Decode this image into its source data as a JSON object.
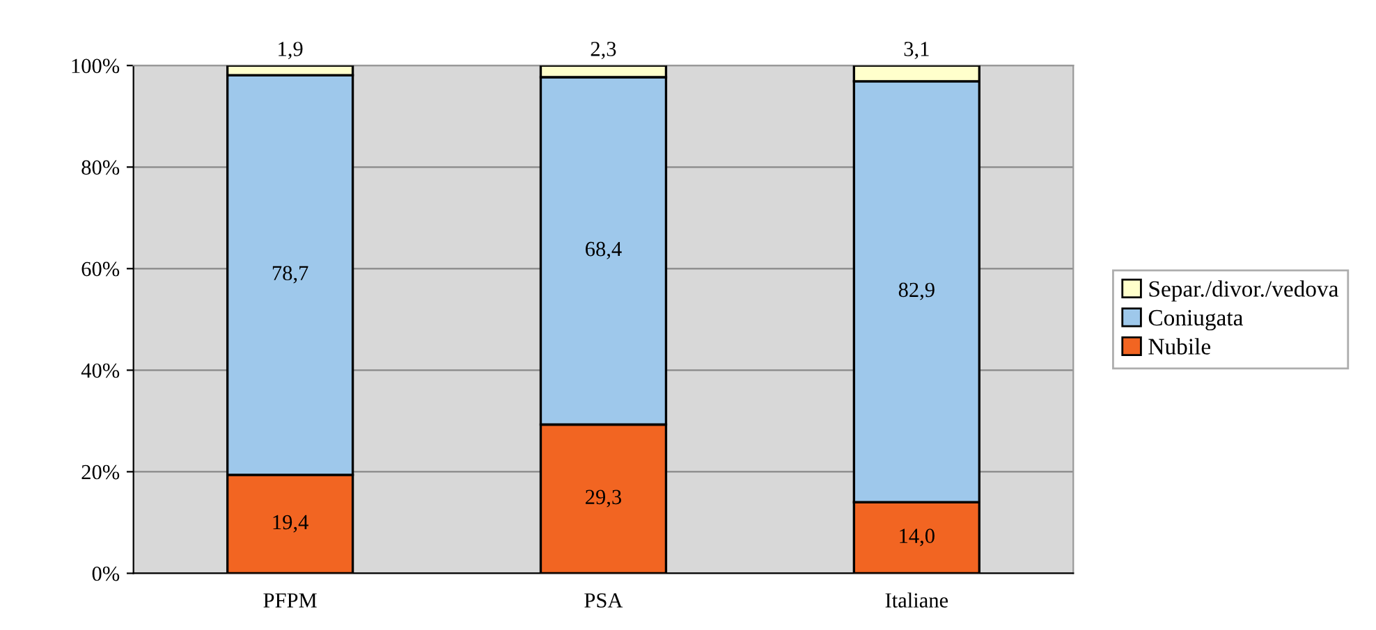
{
  "chart_data": {
    "type": "bar",
    "stacked": true,
    "categories": [
      "PFPM",
      "PSA",
      "Italiane"
    ],
    "series": [
      {
        "name": "Nubile",
        "color": "#f26522",
        "values": [
          19.4,
          29.3,
          14.0
        ],
        "value_labels": [
          "19,4",
          "29,3",
          "14,0"
        ]
      },
      {
        "name": "Coniugata",
        "color": "#9ec8eb",
        "values": [
          78.7,
          68.4,
          82.9
        ],
        "value_labels": [
          "78,7",
          "68,4",
          "82,9"
        ]
      },
      {
        "name": "Separ./divor./vedova",
        "color": "#ffffcc",
        "values": [
          1.9,
          2.3,
          3.1
        ],
        "value_labels": [
          "1,9",
          "2,3",
          "3,1"
        ]
      }
    ],
    "ylim": [
      0,
      100
    ],
    "yticks": [
      {
        "value": 0,
        "label": "0%"
      },
      {
        "value": 20,
        "label": "20%"
      },
      {
        "value": 40,
        "label": "40%"
      },
      {
        "value": 60,
        "label": "60%"
      },
      {
        "value": 80,
        "label": "80%"
      },
      {
        "value": 100,
        "label": "100%"
      }
    ],
    "grid": "y",
    "legend": "right"
  }
}
